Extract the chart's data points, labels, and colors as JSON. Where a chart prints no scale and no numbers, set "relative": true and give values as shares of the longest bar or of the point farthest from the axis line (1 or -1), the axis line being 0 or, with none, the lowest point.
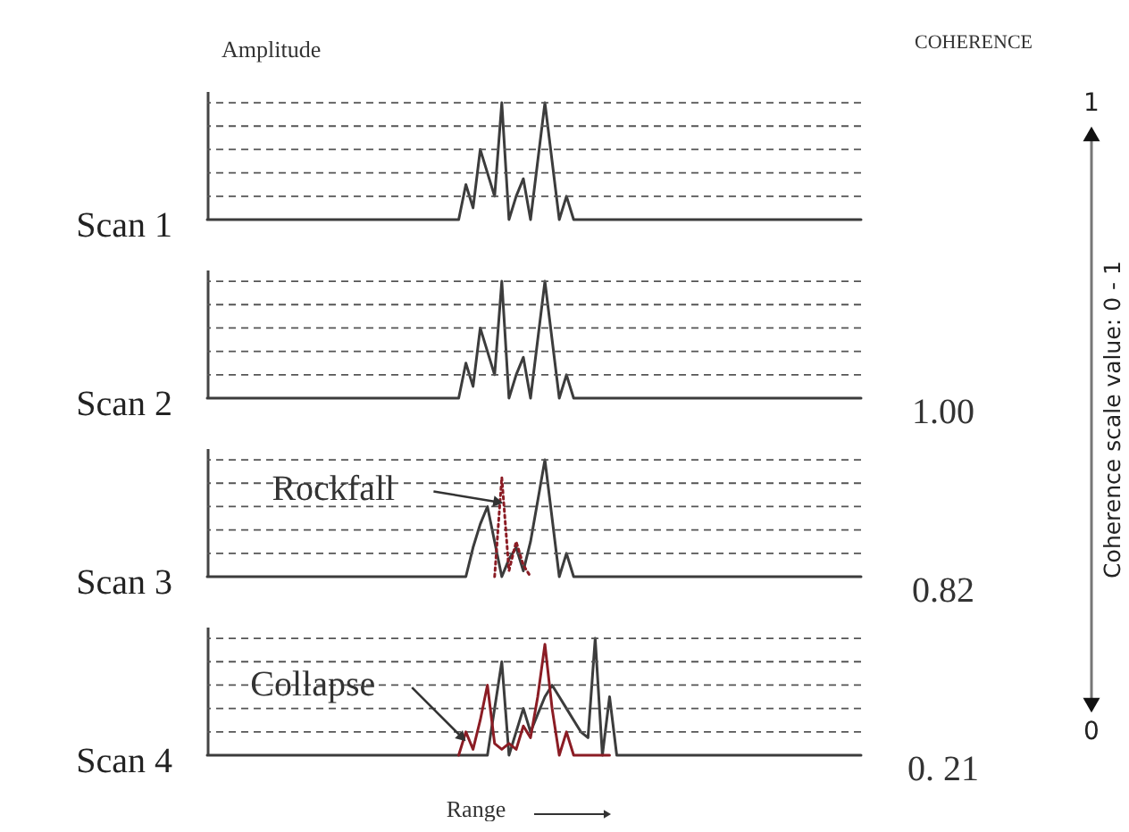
{
  "chart_data": [
    {
      "type": "line",
      "title": "Amplitude",
      "ylabel": "Scan 1",
      "relative": true,
      "annotations": [
        "COHERENCE"
      ],
      "ref_lines": [
        {
          "axis": "y",
          "value": 0.2,
          "line_style": "dashed",
          "color": "#555555"
        },
        {
          "axis": "y",
          "value": 0.4,
          "line_style": "dashed",
          "color": "#555555"
        },
        {
          "axis": "y",
          "value": 0.6,
          "line_style": "dashed",
          "color": "#555555"
        },
        {
          "axis": "y",
          "value": 0.8,
          "line_style": "dashed",
          "color": "#555555"
        },
        {
          "axis": "y",
          "value": 1,
          "line_style": "dashed",
          "color": "#555555"
        }
      ],
      "categories": [
        null,
        null,
        null,
        null,
        null,
        null,
        null,
        null,
        null,
        null,
        null,
        null,
        null,
        null,
        null,
        null,
        null,
        null,
        null,
        null,
        null,
        null,
        null,
        null,
        null,
        null,
        null,
        null,
        null,
        null,
        null,
        null,
        null,
        null,
        null,
        null,
        null,
        null,
        null,
        null,
        null,
        null,
        null,
        null,
        null,
        null,
        null,
        null,
        null,
        null,
        null,
        null,
        null,
        null,
        null,
        null,
        null,
        null,
        null,
        null,
        null,
        null,
        null,
        null,
        null,
        null,
        null,
        null,
        null,
        null,
        null,
        null,
        null,
        null,
        null,
        null,
        null,
        null,
        null,
        null,
        null,
        null,
        null,
        null,
        null,
        null,
        null,
        null,
        null,
        null,
        null,
        null
      ],
      "series": [
        {
          "color": "#3c3c3c",
          "values": [
            0,
            0,
            0,
            0,
            0,
            0,
            0,
            0,
            0,
            0,
            0,
            0,
            0,
            0,
            0,
            0,
            0,
            0,
            0,
            0,
            0,
            0,
            0,
            0,
            0,
            0,
            0,
            0,
            0,
            0,
            0,
            0,
            0,
            0,
            0,
            0,
            0.3,
            0.1,
            0.6,
            0.4,
            0.2,
            1,
            0,
            0.2,
            0.35,
            0,
            0.5,
            1,
            0.5,
            0,
            0.2,
            0,
            0,
            0,
            0,
            0,
            0,
            0,
            0,
            0,
            0,
            0,
            0,
            0,
            0,
            0,
            0,
            0,
            0,
            0,
            0,
            0,
            0,
            0,
            0,
            0,
            0,
            0,
            0,
            0,
            0,
            0,
            0,
            0,
            0,
            0,
            0,
            0,
            0,
            0,
            0,
            0
          ]
        }
      ]
    },
    {
      "type": "line",
      "ylabel": "Scan 2",
      "relative": true,
      "annotations": [
        "1.00"
      ],
      "ref_lines": [
        {
          "axis": "y",
          "value": 0.2,
          "line_style": "dashed",
          "color": "#555555"
        },
        {
          "axis": "y",
          "value": 0.4,
          "line_style": "dashed",
          "color": "#555555"
        },
        {
          "axis": "y",
          "value": 0.6,
          "line_style": "dashed",
          "color": "#555555"
        },
        {
          "axis": "y",
          "value": 0.8,
          "line_style": "dashed",
          "color": "#555555"
        },
        {
          "axis": "y",
          "value": 1,
          "line_style": "dashed",
          "color": "#555555"
        }
      ],
      "categories": [
        null,
        null,
        null,
        null,
        null,
        null,
        null,
        null,
        null,
        null,
        null,
        null,
        null,
        null,
        null,
        null,
        null,
        null,
        null,
        null,
        null,
        null,
        null,
        null,
        null,
        null,
        null,
        null,
        null,
        null,
        null,
        null,
        null,
        null,
        null,
        null,
        null,
        null,
        null,
        null,
        null,
        null,
        null,
        null,
        null,
        null,
        null,
        null,
        null,
        null,
        null,
        null,
        null,
        null,
        null,
        null,
        null,
        null,
        null,
        null,
        null,
        null,
        null,
        null,
        null,
        null,
        null,
        null,
        null,
        null,
        null,
        null,
        null,
        null,
        null,
        null,
        null,
        null,
        null,
        null,
        null,
        null,
        null,
        null,
        null,
        null,
        null,
        null,
        null,
        null,
        null,
        null
      ],
      "series": [
        {
          "color": "#3c3c3c",
          "values": [
            0,
            0,
            0,
            0,
            0,
            0,
            0,
            0,
            0,
            0,
            0,
            0,
            0,
            0,
            0,
            0,
            0,
            0,
            0,
            0,
            0,
            0,
            0,
            0,
            0,
            0,
            0,
            0,
            0,
            0,
            0,
            0,
            0,
            0,
            0,
            0,
            0.3,
            0.1,
            0.6,
            0.4,
            0.2,
            1,
            0,
            0.2,
            0.35,
            0,
            0.5,
            1,
            0.5,
            0,
            0.2,
            0,
            0,
            0,
            0,
            0,
            0,
            0,
            0,
            0,
            0,
            0,
            0,
            0,
            0,
            0,
            0,
            0,
            0,
            0,
            0,
            0,
            0,
            0,
            0,
            0,
            0,
            0,
            0,
            0,
            0,
            0,
            0,
            0,
            0,
            0,
            0,
            0,
            0,
            0,
            0,
            0
          ]
        }
      ]
    },
    {
      "type": "line",
      "ylabel": "Scan 3",
      "relative": true,
      "annotations": [
        "Rockfall",
        "0.82"
      ],
      "ref_lines": [
        {
          "axis": "y",
          "value": 0.2,
          "line_style": "dashed",
          "color": "#555555"
        },
        {
          "axis": "y",
          "value": 0.4,
          "line_style": "dashed",
          "color": "#555555"
        },
        {
          "axis": "y",
          "value": 0.6,
          "line_style": "dashed",
          "color": "#555555"
        },
        {
          "axis": "y",
          "value": 0.8,
          "line_style": "dashed",
          "color": "#555555"
        },
        {
          "axis": "y",
          "value": 1,
          "line_style": "dashed",
          "color": "#555555"
        }
      ],
      "categories": [
        null,
        null,
        null,
        null,
        null,
        null,
        null,
        null,
        null,
        null,
        null,
        null,
        null,
        null,
        null,
        null,
        null,
        null,
        null,
        null,
        null,
        null,
        null,
        null,
        null,
        null,
        null,
        null,
        null,
        null,
        null,
        null,
        null,
        null,
        null,
        null,
        null,
        null,
        null,
        null,
        null,
        null,
        null,
        null,
        null,
        null,
        null,
        null,
        null,
        null,
        null,
        null,
        null,
        null,
        null,
        null,
        null,
        null,
        null,
        null,
        null,
        null,
        null,
        null,
        null,
        null,
        null,
        null,
        null,
        null,
        null,
        null,
        null,
        null,
        null,
        null,
        null,
        null,
        null,
        null,
        null,
        null,
        null,
        null,
        null,
        null,
        null,
        null,
        null,
        null,
        null,
        null
      ],
      "series": [
        {
          "color": "#3c3c3c",
          "values": [
            0,
            0,
            0,
            0,
            0,
            0,
            0,
            0,
            0,
            0,
            0,
            0,
            0,
            0,
            0,
            0,
            0,
            0,
            0,
            0,
            0,
            0,
            0,
            0,
            0,
            0,
            0,
            0,
            0,
            0,
            0,
            0,
            0,
            0,
            0,
            0,
            0,
            0.25,
            0.45,
            0.6,
            0.3,
            0,
            0.15,
            0.25,
            0.05,
            0.3,
            0.65,
            1,
            0.5,
            0,
            0.2,
            0,
            0,
            0,
            0,
            0,
            0,
            0,
            0,
            0,
            0,
            0,
            0,
            0,
            0,
            0,
            0,
            0,
            0,
            0,
            0,
            0,
            0,
            0,
            0,
            0,
            0,
            0,
            0,
            0,
            0,
            0,
            0,
            0,
            0,
            0,
            0,
            0,
            0,
            0,
            0,
            0
          ]
        },
        {
          "color": "#8b1c24",
          "line_style": "dotted",
          "values": [
            null,
            null,
            null,
            null,
            null,
            null,
            null,
            null,
            null,
            null,
            null,
            null,
            null,
            null,
            null,
            null,
            null,
            null,
            null,
            null,
            null,
            null,
            null,
            null,
            null,
            null,
            null,
            null,
            null,
            null,
            null,
            null,
            null,
            null,
            null,
            null,
            null,
            null,
            null,
            null,
            0,
            0.85,
            0.05,
            0.3,
            0.1,
            0,
            null,
            null,
            null,
            null,
            null,
            null,
            null,
            null,
            null,
            null,
            null,
            null,
            null,
            null,
            null,
            null,
            null,
            null,
            null,
            null,
            null,
            null,
            null,
            null,
            null,
            null,
            null,
            null,
            null,
            null,
            null,
            null,
            null,
            null,
            null,
            null,
            null,
            null,
            null,
            null,
            null,
            null,
            null,
            null,
            null,
            null
          ]
        }
      ]
    },
    {
      "type": "line",
      "ylabel": "Scan 4",
      "xlabel": "Range",
      "relative": true,
      "annotations": [
        "Collapse",
        "0. 21"
      ],
      "ref_lines": [
        {
          "axis": "y",
          "value": 0.2,
          "line_style": "dashed",
          "color": "#555555"
        },
        {
          "axis": "y",
          "value": 0.4,
          "line_style": "dashed",
          "color": "#555555"
        },
        {
          "axis": "y",
          "value": 0.6,
          "line_style": "dashed",
          "color": "#555555"
        },
        {
          "axis": "y",
          "value": 0.8,
          "line_style": "dashed",
          "color": "#555555"
        },
        {
          "axis": "y",
          "value": 1,
          "line_style": "dashed",
          "color": "#555555"
        }
      ],
      "categories": [
        null,
        null,
        null,
        null,
        null,
        null,
        null,
        null,
        null,
        null,
        null,
        null,
        null,
        null,
        null,
        null,
        null,
        null,
        null,
        null,
        null,
        null,
        null,
        null,
        null,
        null,
        null,
        null,
        null,
        null,
        null,
        null,
        null,
        null,
        null,
        null,
        null,
        null,
        null,
        null,
        null,
        null,
        null,
        null,
        null,
        null,
        null,
        null,
        null,
        null,
        null,
        null,
        null,
        null,
        null,
        null,
        null,
        null,
        null,
        null,
        null,
        null,
        null,
        null,
        null,
        null,
        null,
        null,
        null,
        null,
        null,
        null,
        null,
        null,
        null,
        null,
        null,
        null,
        null,
        null,
        null,
        null,
        null,
        null,
        null,
        null,
        null,
        null,
        null,
        null,
        null,
        null
      ],
      "series": [
        {
          "color": "#3c3c3c",
          "values": [
            0,
            0,
            0,
            0,
            0,
            0,
            0,
            0,
            0,
            0,
            0,
            0,
            0,
            0,
            0,
            0,
            0,
            0,
            0,
            0,
            0,
            0,
            0,
            0,
            0,
            0,
            0,
            0,
            0,
            0,
            0,
            0,
            0,
            0,
            0,
            0,
            0,
            0,
            0,
            0,
            0.4,
            0.8,
            0,
            0.2,
            0.4,
            0.2,
            0.35,
            0.5,
            0.6,
            0.5,
            0.4,
            0.3,
            0.2,
            0.15,
            1,
            0,
            0.5,
            0,
            0,
            0,
            0,
            0,
            0,
            0,
            0,
            0,
            0,
            0,
            0,
            0,
            0,
            0,
            0,
            0,
            0,
            0,
            0,
            0,
            0,
            0,
            0,
            0,
            0,
            0,
            0,
            0,
            0,
            0,
            0,
            0,
            0,
            0
          ]
        },
        {
          "color": "#8b1c24",
          "values": [
            null,
            null,
            null,
            null,
            null,
            null,
            null,
            null,
            null,
            null,
            null,
            null,
            null,
            null,
            null,
            null,
            null,
            null,
            null,
            null,
            null,
            null,
            null,
            null,
            null,
            null,
            null,
            null,
            null,
            null,
            null,
            null,
            null,
            null,
            null,
            0,
            0.2,
            0.05,
            0.3,
            0.6,
            0.1,
            0.05,
            0.1,
            0.05,
            0.25,
            0.15,
            0.5,
            0.95,
            0.4,
            0,
            0.2,
            0,
            0,
            0,
            0,
            0,
            0,
            null,
            null,
            null,
            null,
            null,
            null,
            null,
            null,
            null,
            null,
            null,
            null,
            null,
            null,
            null,
            null,
            null,
            null,
            null,
            null,
            null,
            null,
            null,
            null,
            null,
            null,
            null,
            null,
            null,
            null,
            null,
            null,
            null,
            null,
            null
          ]
        }
      ]
    },
    {
      "type": "other",
      "ylabel": "Coherence scale value: 0 - 1",
      "annotations": [
        "1",
        "0"
      ]
    }
  ]
}
